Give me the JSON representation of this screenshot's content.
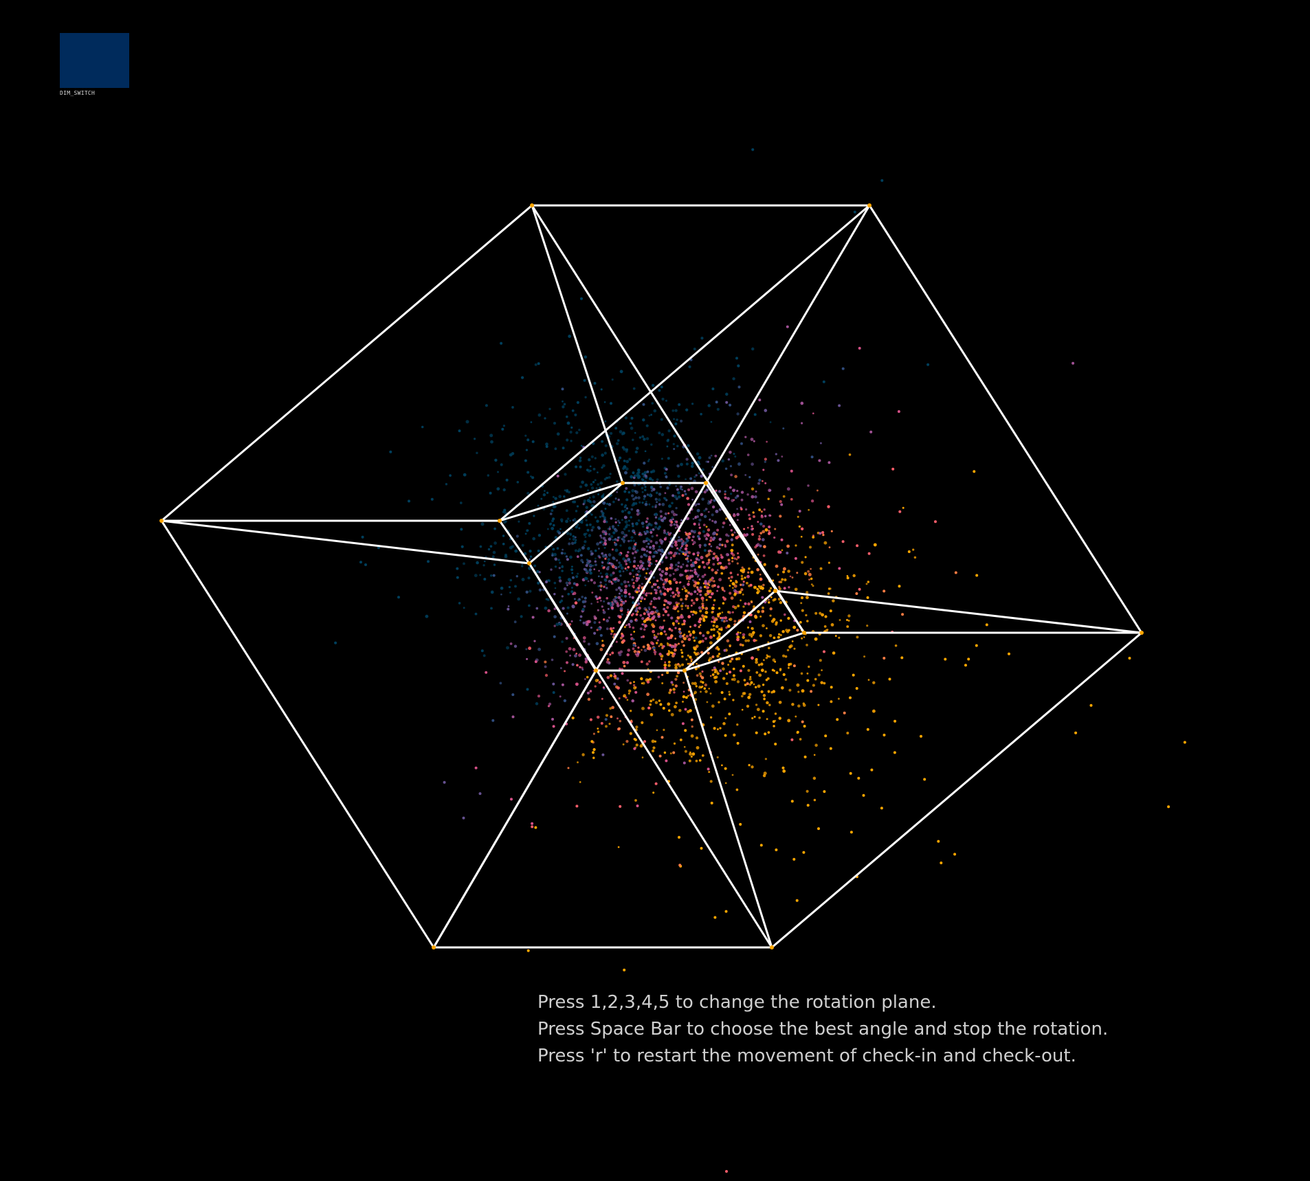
{
  "dim_switch": {
    "label": "DIM_SWITCH",
    "color": "#002b5c"
  },
  "instructions": [
    "Press 1,2,3,4,5 to change the rotation plane.",
    "Press Space Bar to choose the best angle and stop the rotation.",
    "Press 'r' to restart the movement of check-in and check-out."
  ],
  "colors": {
    "background": "#000000",
    "edges": "#ffffff",
    "vertices": "#ffa600",
    "point_palette": [
      "#003f5c",
      "#2f4b7c",
      "#665191",
      "#a05195",
      "#d45087",
      "#f95d6a",
      "#ff7c43",
      "#ffa600"
    ]
  }
}
